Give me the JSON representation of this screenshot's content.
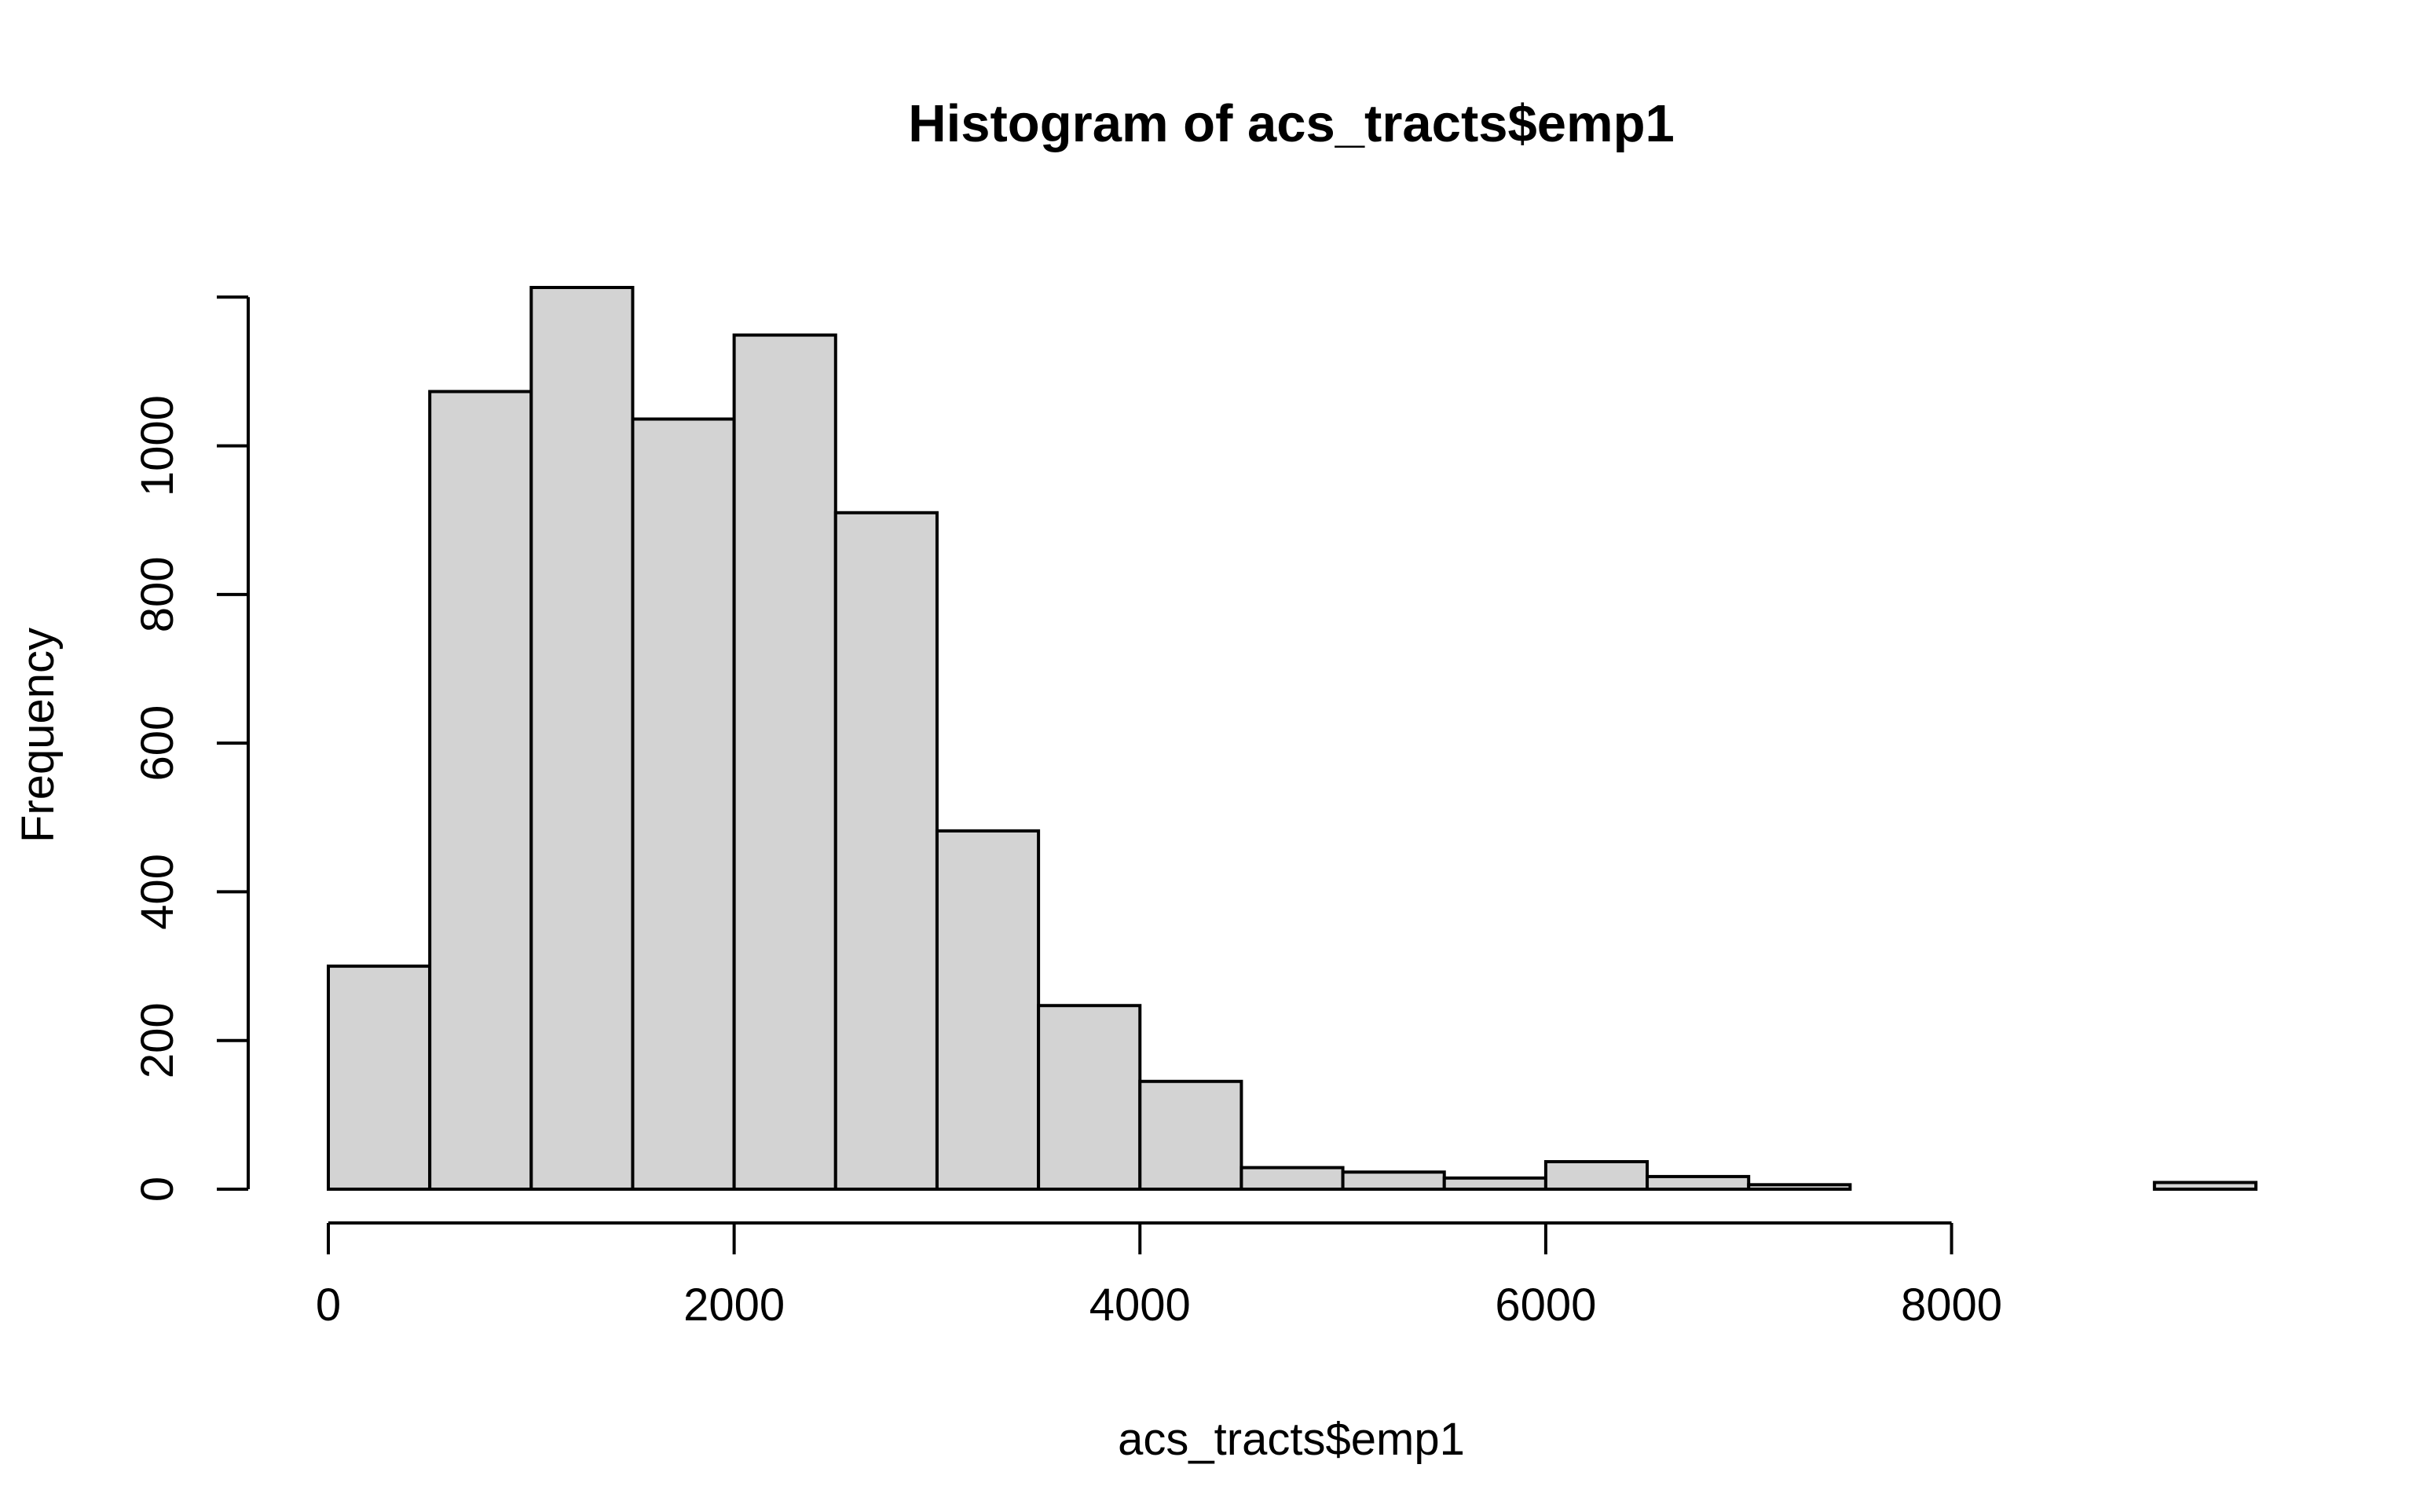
{
  "chart_data": {
    "type": "bar",
    "title": "Histogram of acs_tracts$emp1",
    "xlabel": "acs_tracts$emp1",
    "ylabel": "Frequency",
    "bin_width": 500,
    "bins": [
      {
        "x0": 0,
        "x1": 500,
        "count": 300
      },
      {
        "x0": 500,
        "x1": 1000,
        "count": 1073
      },
      {
        "x0": 1000,
        "x1": 1500,
        "count": 1213
      },
      {
        "x0": 1500,
        "x1": 2000,
        "count": 1036
      },
      {
        "x0": 2000,
        "x1": 2500,
        "count": 1149
      },
      {
        "x0": 2500,
        "x1": 3000,
        "count": 910
      },
      {
        "x0": 3000,
        "x1": 3500,
        "count": 482
      },
      {
        "x0": 3500,
        "x1": 4000,
        "count": 247
      },
      {
        "x0": 4000,
        "x1": 4500,
        "count": 145
      },
      {
        "x0": 4500,
        "x1": 5000,
        "count": 29
      },
      {
        "x0": 5000,
        "x1": 5500,
        "count": 23
      },
      {
        "x0": 5500,
        "x1": 6000,
        "count": 15
      },
      {
        "x0": 6000,
        "x1": 6500,
        "count": 37
      },
      {
        "x0": 6500,
        "x1": 7000,
        "count": 17
      },
      {
        "x0": 7000,
        "x1": 7500,
        "count": 6
      },
      {
        "x0": 7500,
        "x1": 8000,
        "count": 0
      },
      {
        "x0": 8000,
        "x1": 8500,
        "count": 0
      },
      {
        "x0": 8500,
        "x1": 9000,
        "count": 0
      },
      {
        "x0": 9000,
        "x1": 9500,
        "count": 9
      }
    ],
    "x_ticks": [
      0,
      2000,
      4000,
      6000,
      8000
    ],
    "y_ticks": [
      0,
      200,
      400,
      600,
      800,
      1000
    ],
    "x_tick_labels": [
      "0",
      "2000",
      "4000",
      "6000",
      "8000"
    ],
    "y_tick_labels": [
      "0",
      "200",
      "400",
      "600",
      "800",
      "1000"
    ],
    "xlim": [
      0,
      9500
    ],
    "ylim": [
      0,
      1213
    ],
    "y_axis_max": 1200,
    "grid": false,
    "legend": "none",
    "bar_fill": "#d3d3d3",
    "bar_stroke": "#000000"
  }
}
